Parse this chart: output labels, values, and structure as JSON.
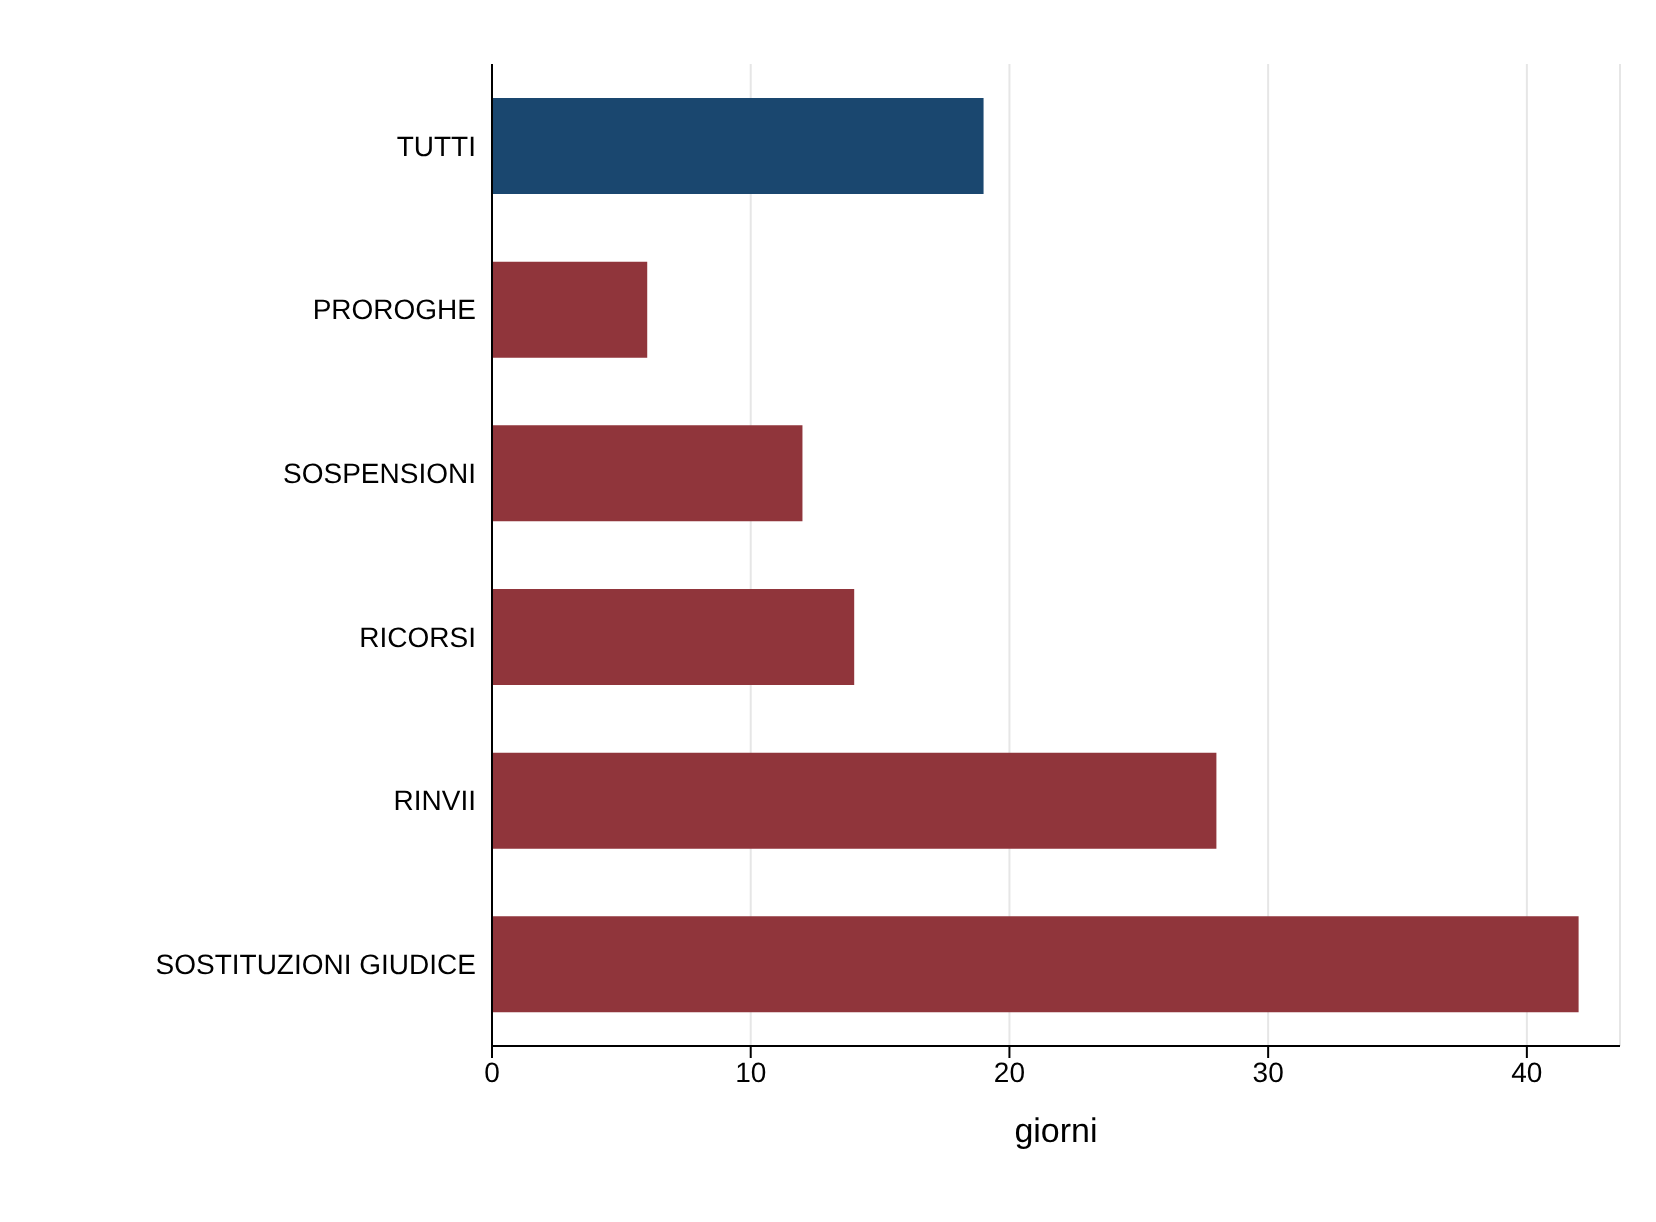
{
  "chart_data": {
    "type": "bar",
    "orientation": "horizontal",
    "xlabel": "giorni",
    "categories": [
      "TUTTI",
      "PROROGHE",
      "SOSPENSIONI",
      "RICORSI",
      "RINVII",
      "SOSTITUZIONI GIUDICE"
    ],
    "values": [
      19,
      6,
      12,
      14,
      28,
      42
    ],
    "colors": [
      "#1a476f",
      "#90353b",
      "#90353b",
      "#90353b",
      "#90353b",
      "#90353b"
    ],
    "xlim": [
      0,
      43.6
    ],
    "xticks": [
      0,
      10,
      20,
      30,
      40
    ],
    "grid": "x",
    "legend": false
  }
}
